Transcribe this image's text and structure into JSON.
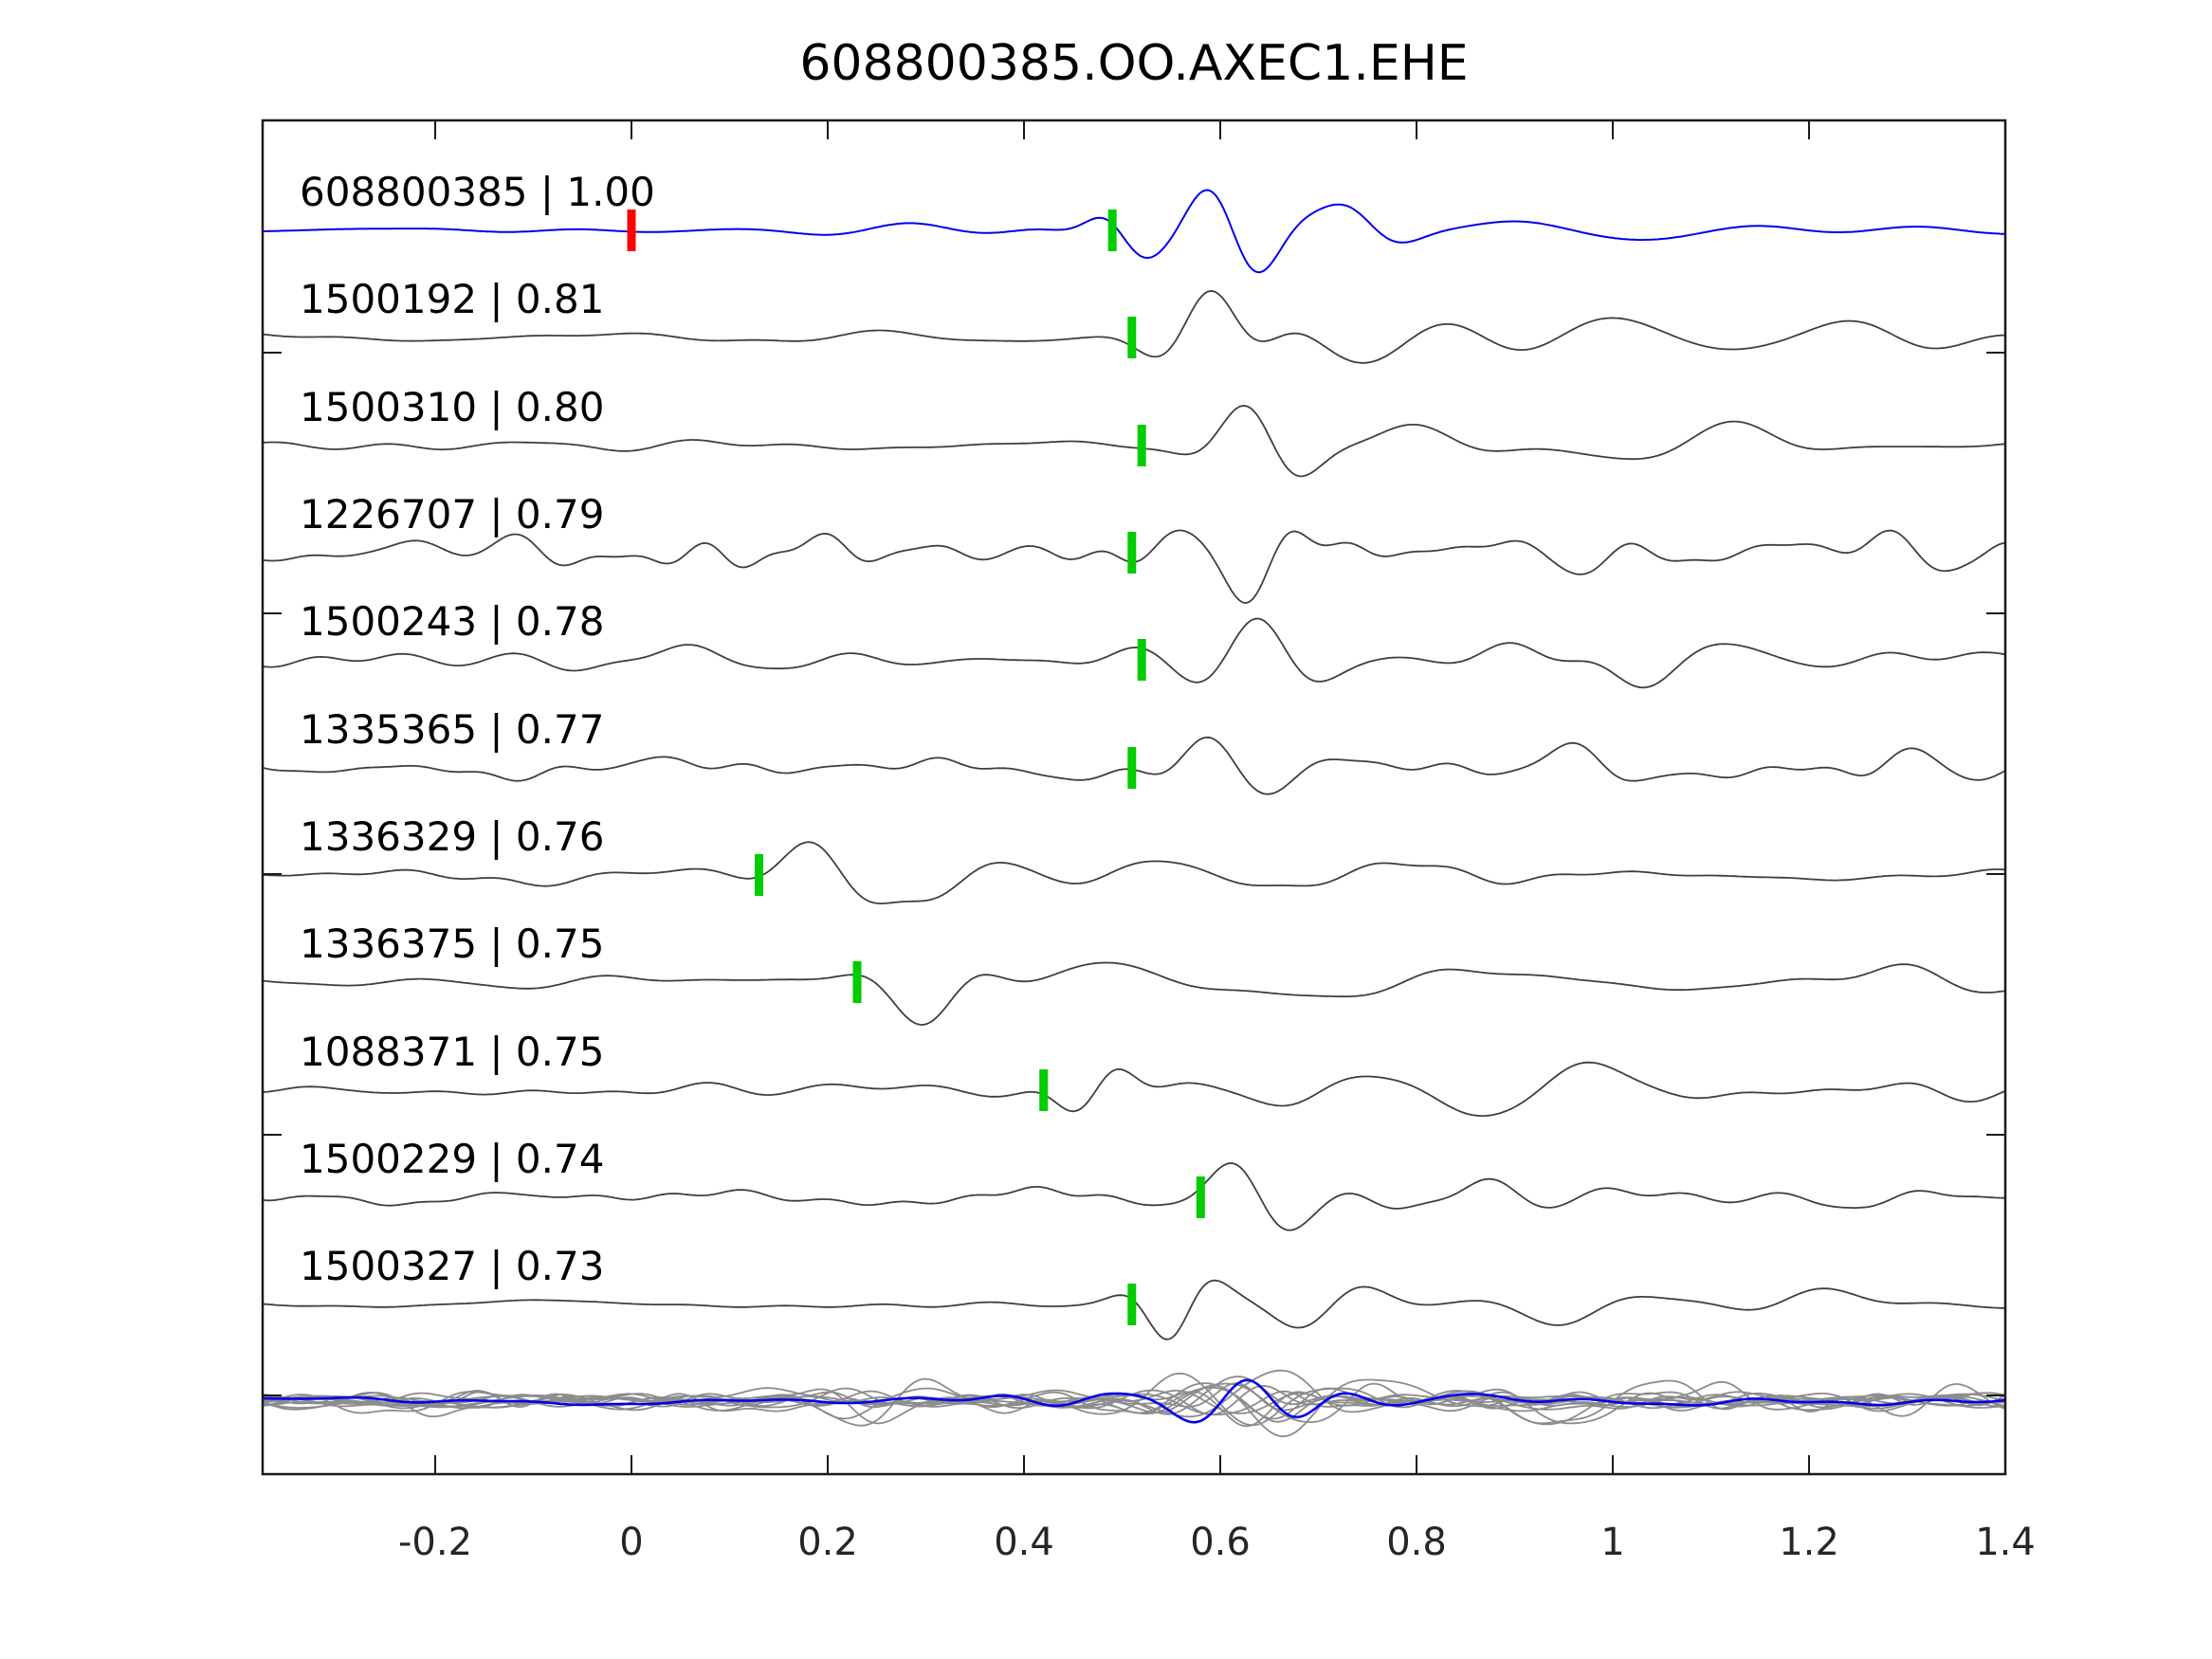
{
  "title": "608800385.OO.AXEC1.EHE",
  "colors": {
    "template_trace": "#0000ee",
    "detection_trace": "#3f3f3f",
    "overlay_gray": "#8c8c8c",
    "pick_marker": "#00cc00",
    "template_pick_marker": "#ff0000",
    "frame": "#1a1a1a",
    "label_text": "#000000",
    "tick_text": "#262626"
  },
  "chart_data": {
    "type": "line",
    "title": "608800385.OO.AXEC1.EHE",
    "xlabel": "",
    "ylabel": "",
    "xlim": [
      -0.376,
      1.4
    ],
    "grid": false,
    "legend": "none",
    "x_tick_values": [
      -0.2,
      0,
      0.2,
      0.4,
      0.6,
      0.8,
      1,
      1.2,
      1.4
    ],
    "x_tick_labels": [
      "-0.2",
      "0",
      "0.2",
      "0.4",
      "0.6",
      "0.8",
      "1",
      "1.2",
      "1.4"
    ],
    "template_marker": {
      "trace_index": 0,
      "time": 0.0
    },
    "traces": [
      {
        "id": "608800385",
        "cc": "1.00",
        "label": "608800385 | 1.00",
        "pick_time": 0.49,
        "is_template": true,
        "render": {
          "seed": 11,
          "noise": 7,
          "hf": 0.45,
          "events": [
            [
              0.5,
              24,
              0.03,
              8
            ],
            [
              0.615,
              50,
              0.05,
              8.5
            ],
            [
              0.73,
              26,
              0.045,
              7
            ],
            [
              0.97,
              12,
              0.1,
              3.5
            ]
          ]
        }
      },
      {
        "id": "1500192",
        "cc": "0.81",
        "label": "1500192 | 0.81",
        "pick_time": 0.51,
        "is_template": false,
        "render": {
          "seed": 22,
          "noise": 8,
          "hf": 0.55,
          "events": [
            [
              0.59,
              46,
              0.045,
              7.5
            ],
            [
              0.76,
              30,
              0.09,
              4.5
            ],
            [
              0.99,
              24,
              0.1,
              3.8
            ],
            [
              1.27,
              16,
              0.08,
              5
            ]
          ]
        }
      },
      {
        "id": "1500310",
        "cc": "0.80",
        "label": "1500310 | 0.80",
        "pick_time": 0.52,
        "is_template": false,
        "render": {
          "seed": 33,
          "noise": 7,
          "hf": 0.55,
          "events": [
            [
              0.64,
              50,
              0.045,
              7
            ],
            [
              0.8,
              22,
              0.07,
              4.5
            ],
            [
              1.08,
              22,
              0.09,
              3.5
            ]
          ]
        }
      },
      {
        "id": "1226707",
        "cc": "0.79",
        "label": "1226707 | 0.79",
        "pick_time": 0.51,
        "is_template": false,
        "render": {
          "seed": 44,
          "noise": 19,
          "hf": 1.05,
          "events": [
            [
              0.62,
              38,
              0.05,
              7.5
            ],
            [
              1.32,
              18,
              0.06,
              8
            ]
          ]
        }
      },
      {
        "id": "1500243",
        "cc": "0.78",
        "label": "1500243 | 0.78",
        "pick_time": 0.52,
        "is_template": false,
        "render": {
          "seed": 55,
          "noise": 13,
          "hf": 0.8,
          "events": [
            [
              0.635,
              46,
              0.05,
              7
            ],
            [
              1.07,
              24,
              0.08,
              4.5
            ]
          ]
        }
      },
      {
        "id": "1335365",
        "cc": "0.77",
        "label": "1335365 | 0.77",
        "pick_time": 0.51,
        "is_template": false,
        "render": {
          "seed": 66,
          "noise": 15,
          "hf": 0.9,
          "events": [
            [
              0.615,
              40,
              0.05,
              7.5
            ],
            [
              0.97,
              18,
              0.06,
              6
            ],
            [
              1.31,
              20,
              0.06,
              7
            ]
          ]
        }
      },
      {
        "id": "1336329",
        "cc": "0.76",
        "label": "1336329 | 0.76",
        "pick_time": 0.13,
        "is_template": false,
        "render": {
          "seed": 77,
          "noise": 10,
          "hf": 0.65,
          "events": [
            [
              0.21,
              38,
              0.055,
              6.5
            ],
            [
              0.315,
              28,
              0.05,
              5.5
            ],
            [
              0.56,
              14,
              0.1,
              4
            ],
            [
              0.8,
              12,
              0.09,
              4.5
            ]
          ]
        }
      },
      {
        "id": "1336375",
        "cc": "0.75",
        "label": "1336375 | 0.75",
        "pick_time": 0.23,
        "is_template": false,
        "render": {
          "seed": 88,
          "noise": 9,
          "hf": 0.5,
          "events": [
            [
              0.3,
              42,
              0.05,
              6
            ],
            [
              0.52,
              18,
              0.1,
              3.5
            ],
            [
              0.78,
              16,
              0.12,
              3
            ],
            [
              1.32,
              14,
              0.07,
              5
            ]
          ]
        }
      },
      {
        "id": "1088371",
        "cc": "0.75",
        "label": "1088371 | 0.75",
        "pick_time": 0.42,
        "is_template": false,
        "render": {
          "seed": 99,
          "noise": 10,
          "hf": 0.65,
          "events": [
            [
              0.475,
              36,
              0.035,
              8
            ],
            [
              0.64,
              14,
              0.09,
              5
            ],
            [
              0.92,
              30,
              0.09,
              3.8
            ]
          ]
        }
      },
      {
        "id": "1500229",
        "cc": "0.74",
        "label": "1500229 | 0.74",
        "pick_time": 0.58,
        "is_template": false,
        "render": {
          "seed": 110,
          "noise": 14,
          "hf": 0.9,
          "events": [
            [
              0.645,
              44,
              0.045,
              7
            ],
            [
              0.86,
              18,
              0.06,
              6
            ],
            [
              1.26,
              15,
              0.06,
              7
            ]
          ]
        }
      },
      {
        "id": "1500327",
        "cc": "0.73",
        "label": "1500327 | 0.73",
        "pick_time": 0.51,
        "is_template": false,
        "render": {
          "seed": 121,
          "noise": 8,
          "hf": 0.55,
          "events": [
            [
              0.555,
              40,
              0.035,
              8.5
            ],
            [
              0.7,
              28,
              0.055,
              6
            ],
            [
              0.97,
              14,
              0.08,
              5
            ],
            [
              1.22,
              12,
              0.08,
              5
            ]
          ]
        }
      }
    ],
    "overlay": {
      "description": "all detections superimposed in gray with template in blue",
      "gray_traces": [
        {
          "seed": 201,
          "noise": 10,
          "hf": 1.0,
          "events": [
            [
              0.6,
              18,
              0.06,
              7
            ]
          ]
        },
        {
          "seed": 208,
          "noise": 12,
          "hf": 0.9,
          "events": [
            [
              0.63,
              26,
              0.07,
              6.5
            ],
            [
              0.26,
              28,
              0.05,
              6
            ]
          ]
        },
        {
          "seed": 215,
          "noise": 9,
          "hf": 1.2,
          "events": [
            [
              0.64,
              20,
              0.05,
              8
            ]
          ]
        },
        {
          "seed": 222,
          "noise": 13,
          "hf": 0.95,
          "events": [
            [
              0.61,
              30,
              0.08,
              6
            ],
            [
              0.95,
              26,
              0.07,
              5
            ]
          ]
        },
        {
          "seed": 229,
          "noise": 11,
          "hf": 1.1,
          "events": [
            [
              0.62,
              16,
              0.05,
              7.5
            ],
            [
              1.35,
              20,
              0.05,
              7
            ]
          ]
        },
        {
          "seed": 236,
          "noise": 14,
          "hf": 0.85,
          "events": [
            [
              0.65,
              34,
              0.08,
              6
            ],
            [
              0.27,
              26,
              0.06,
              5.5
            ]
          ]
        },
        {
          "seed": 243,
          "noise": 10,
          "hf": 1.05,
          "events": [
            [
              0.6,
              22,
              0.06,
              7
            ]
          ]
        },
        {
          "seed": 250,
          "noise": 12,
          "hf": 0.9,
          "events": [
            [
              0.63,
              28,
              0.07,
              6
            ],
            [
              0.97,
              28,
              0.08,
              4.5
            ]
          ]
        },
        {
          "seed": 257,
          "noise": 9,
          "hf": 1.15,
          "events": [
            [
              0.62,
              18,
              0.05,
              8
            ],
            [
              1.13,
              18,
              0.06,
              6
            ]
          ]
        },
        {
          "seed": 264,
          "noise": 13,
          "hf": 0.95,
          "events": [
            [
              0.64,
              32,
              0.08,
              5.5
            ],
            [
              0.24,
              22,
              0.05,
              6.5
            ]
          ]
        },
        {
          "seed": 271,
          "noise": 11,
          "hf": 1.0,
          "events": [
            [
              0.61,
              20,
              0.06,
              7
            ],
            [
              0.92,
              22,
              0.07,
              5
            ]
          ]
        },
        {
          "seed": 278,
          "noise": 12,
          "hf": 0.9,
          "events": [
            [
              0.63,
              24,
              0.06,
              6.5
            ]
          ]
        }
      ],
      "blue_trace": {
        "seed": 301,
        "noise": 8,
        "hf": 0.7,
        "events": [
          [
            0.63,
            26,
            0.07,
            9
          ],
          [
            0.47,
            10,
            0.05,
            6
          ]
        ]
      }
    }
  }
}
